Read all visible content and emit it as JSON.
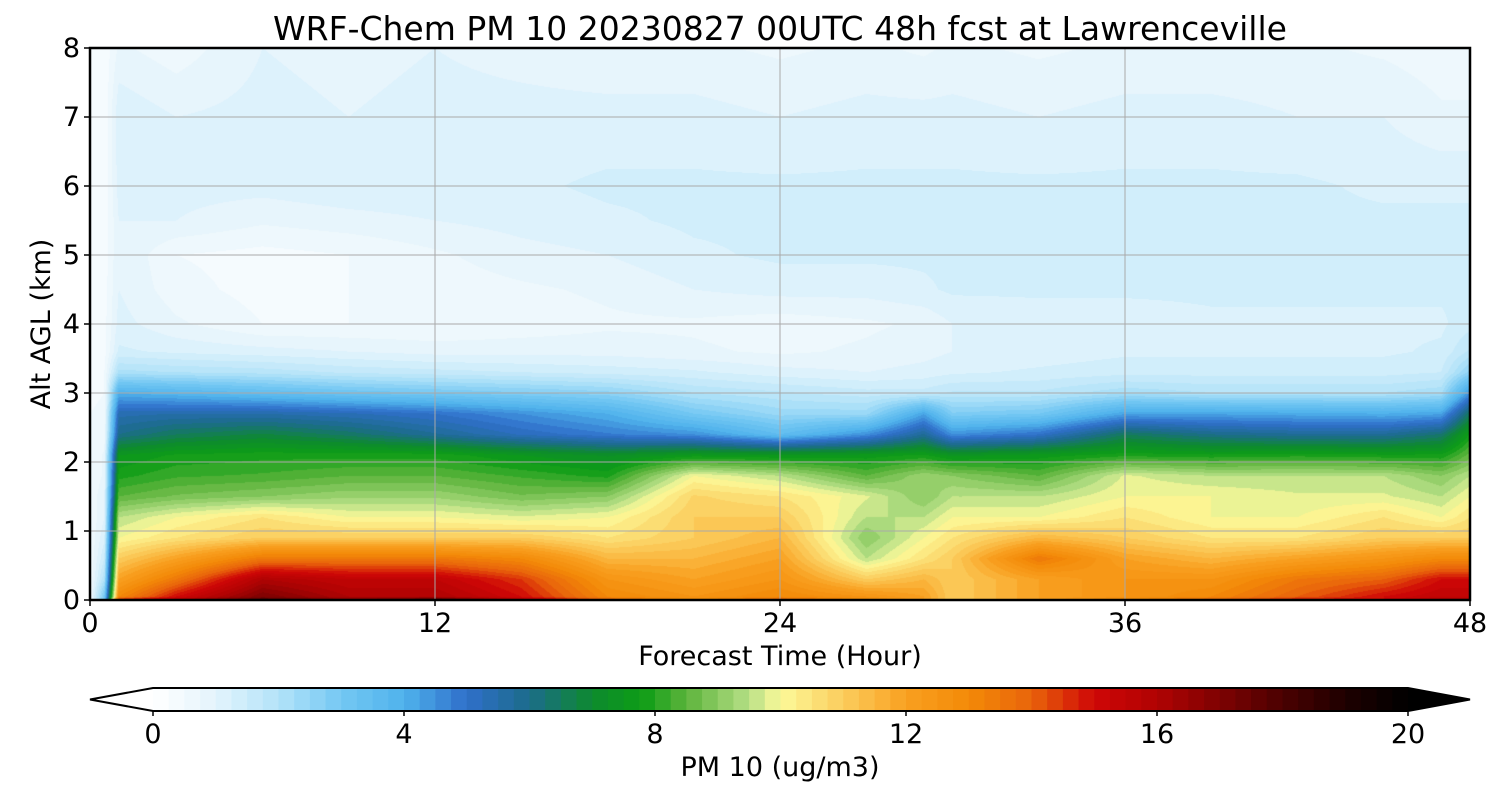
{
  "chart_data": {
    "type": "heatmap",
    "title": "WRF-Chem PM 10  20230827 00UTC 48h fcst at Lawrenceville",
    "xlabel": "Forecast Time (Hour)",
    "ylabel": "Alt AGL (km)",
    "xlim": [
      0,
      48
    ],
    "ylim": [
      0,
      8
    ],
    "xticks": [
      0,
      12,
      24,
      36,
      48
    ],
    "yticks": [
      0,
      1,
      2,
      3,
      4,
      5,
      6,
      7,
      8
    ],
    "grid": true,
    "colorbar": {
      "label": "PM 10  (ug/m3)",
      "range": [
        0,
        20
      ],
      "ticks": [
        0,
        4,
        8,
        12,
        16,
        20
      ],
      "extend": "both",
      "colors": [
        {
          "v": 0,
          "c": "#ffffff"
        },
        {
          "v": 1,
          "c": "#e3f4fc"
        },
        {
          "v": 2,
          "c": "#b3e3f9"
        },
        {
          "v": 3,
          "c": "#74c8f3"
        },
        {
          "v": 4,
          "c": "#4fb2ec"
        },
        {
          "v": 5,
          "c": "#2f6fca"
        },
        {
          "v": 6,
          "c": "#1c6c8a"
        },
        {
          "v": 7,
          "c": "#0d8a2e"
        },
        {
          "v": 7.8,
          "c": "#0d9d16"
        },
        {
          "v": 8.5,
          "c": "#5db43c"
        },
        {
          "v": 9.5,
          "c": "#b6df86"
        },
        {
          "v": 10,
          "c": "#fcfa9a"
        },
        {
          "v": 11,
          "c": "#fbcc5c"
        },
        {
          "v": 12,
          "c": "#f9a020"
        },
        {
          "v": 13,
          "c": "#f38a08"
        },
        {
          "v": 14,
          "c": "#e9640b"
        },
        {
          "v": 15,
          "c": "#cf0606"
        },
        {
          "v": 16,
          "c": "#b00303"
        },
        {
          "v": 17,
          "c": "#7e0202"
        },
        {
          "v": 18,
          "c": "#4a0101"
        },
        {
          "v": 19,
          "c": "#1e0000"
        },
        {
          "v": 20,
          "c": "#000000"
        }
      ]
    },
    "x": [
      0,
      0.5,
      1,
      3,
      6,
      9,
      12,
      15,
      18,
      21,
      24,
      27,
      29,
      30,
      33,
      36,
      39,
      42,
      45,
      47,
      48
    ],
    "y": [
      0,
      0.05,
      0.3,
      0.6,
      0.9,
      1.2,
      1.5,
      1.8,
      2.1,
      2.4,
      2.7,
      3.0,
      3.3,
      3.6,
      4.0,
      4.5,
      5.0,
      5.5,
      6.0,
      7.0,
      8.0
    ],
    "z": [
      [
        0.5,
        3,
        15,
        16,
        18,
        17,
        18,
        16,
        14,
        13,
        14,
        13,
        12,
        11,
        12,
        13,
        14,
        15,
        15,
        16,
        16
      ],
      [
        0.5,
        3,
        13,
        15,
        17,
        16,
        16,
        15,
        13,
        12.5,
        13,
        12.5,
        12,
        11,
        12,
        12.5,
        13,
        14,
        15,
        15.5,
        15.5
      ],
      [
        0.5,
        2,
        12,
        13.5,
        16,
        15.5,
        15.5,
        14.5,
        12.5,
        12,
        12.5,
        11,
        11.5,
        11,
        12,
        12.5,
        12.5,
        13.5,
        14,
        15,
        15
      ],
      [
        0.5,
        1.5,
        11,
        12,
        13.5,
        13.5,
        13.5,
        13,
        11.5,
        11.5,
        12,
        9.5,
        10.5,
        11,
        13.5,
        12,
        11.5,
        12,
        12.5,
        13,
        13
      ],
      [
        0.5,
        1.2,
        10,
        10.5,
        11,
        11,
        11,
        11,
        10.5,
        11,
        11.5,
        9,
        10,
        10.5,
        11.5,
        11,
        10.5,
        10.5,
        11,
        11,
        11
      ],
      [
        0.5,
        1.0,
        9.5,
        10,
        10.5,
        10,
        10,
        9.8,
        10,
        11,
        11,
        9.5,
        9.5,
        10,
        10,
        10.5,
        10,
        10,
        10.5,
        10,
        10.5
      ],
      [
        0.5,
        1.0,
        8.5,
        8.8,
        9,
        9.2,
        9.2,
        8.8,
        9,
        10.8,
        10.5,
        9.8,
        9,
        9.5,
        9.5,
        10,
        10,
        9.8,
        9.8,
        9.5,
        10
      ],
      [
        0.5,
        0.8,
        7.9,
        8.2,
        8.3,
        8.5,
        8.5,
        8.2,
        7.9,
        10,
        9.5,
        8.5,
        9.2,
        9,
        8.5,
        9.8,
        9.5,
        9.5,
        9.5,
        9,
        9.5
      ],
      [
        0.5,
        0.8,
        7.5,
        7.8,
        7.9,
        7.9,
        7.9,
        7.5,
        7.2,
        7.6,
        7.5,
        7.6,
        7.8,
        7.4,
        7.6,
        7.9,
        7.8,
        7.9,
        7.8,
        7.8,
        8.6
      ],
      [
        0.5,
        0.6,
        6.0,
        6.5,
        6.8,
        6.4,
        5.8,
        5.2,
        4.8,
        4.5,
        3.5,
        4.5,
        5.8,
        4.5,
        5.0,
        6.5,
        6.0,
        5.8,
        5.8,
        6.3,
        7.8
      ],
      [
        0.5,
        0.6,
        5.4,
        5.5,
        5.5,
        5.3,
        5.0,
        4.5,
        4.0,
        3.0,
        2.4,
        2.4,
        4.2,
        2.8,
        3.0,
        4.2,
        4.2,
        4.1,
        4.0,
        4.2,
        6.5
      ],
      [
        0.4,
        0.5,
        4.0,
        3.8,
        3.5,
        3.2,
        3.0,
        2.8,
        2.6,
        2.0,
        1.8,
        1.6,
        1.6,
        1.8,
        1.8,
        2.2,
        2.0,
        2.0,
        2.0,
        2.2,
        4.5
      ],
      [
        0.4,
        0.5,
        2.1,
        2.0,
        1.9,
        1.7,
        1.6,
        1.5,
        1.4,
        1.3,
        1.1,
        1.0,
        1.1,
        1.2,
        1.3,
        1.4,
        1.4,
        1.4,
        1.4,
        1.5,
        2.6
      ],
      [
        0.4,
        0.4,
        1.3,
        1.2,
        1.1,
        1.0,
        0.9,
        0.9,
        0.9,
        0.8,
        0.7,
        0.8,
        0.9,
        1.0,
        1.1,
        1.2,
        1.2,
        1.2,
        1.2,
        1.3,
        1.8
      ],
      [
        0.3,
        0.4,
        1.1,
        0.8,
        0.5,
        0.5,
        0.5,
        0.6,
        0.7,
        0.7,
        0.6,
        0.7,
        0.8,
        1.0,
        1.1,
        1.1,
        1.2,
        1.2,
        1.2,
        1.2,
        1.4
      ],
      [
        0.3,
        0.4,
        1.0,
        0.6,
        0.4,
        0.5,
        0.6,
        0.7,
        0.8,
        1.0,
        1.1,
        1.1,
        1.2,
        1.3,
        1.3,
        1.3,
        1.3,
        1.3,
        1.3,
        1.3,
        1.3
      ],
      [
        0.3,
        0.3,
        1.0,
        0.5,
        0.4,
        0.5,
        0.7,
        0.9,
        1.0,
        1.2,
        1.3,
        1.3,
        1.3,
        1.3,
        1.4,
        1.5,
        1.5,
        1.4,
        1.3,
        1.3,
        1.3
      ],
      [
        0.3,
        0.3,
        1.0,
        1.0,
        0.8,
        0.9,
        1.0,
        1.1,
        1.2,
        1.3,
        1.3,
        1.3,
        1.3,
        1.4,
        1.4,
        1.4,
        1.4,
        1.3,
        1.3,
        1.3,
        1.3
      ],
      [
        0.3,
        0.3,
        1.1,
        1.1,
        1.1,
        1.2,
        1.2,
        1.2,
        1.3,
        1.3,
        1.3,
        1.3,
        1.3,
        1.3,
        1.3,
        1.3,
        1.3,
        1.3,
        1.2,
        1.2,
        1.2
      ],
      [
        0.3,
        0.3,
        1.2,
        1.0,
        1.1,
        1.0,
        1.1,
        1.1,
        1.1,
        1.1,
        1.0,
        1.1,
        1.1,
        1.1,
        1.0,
        1.1,
        1.1,
        1.0,
        1.0,
        0.8,
        0.8
      ],
      [
        0.3,
        0.3,
        0.8,
        0.6,
        1.0,
        0.9,
        1.0,
        0.9,
        0.8,
        0.8,
        0.7,
        0.8,
        0.7,
        0.8,
        0.7,
        0.8,
        0.8,
        0.8,
        0.7,
        0.6,
        0.6
      ]
    ]
  }
}
